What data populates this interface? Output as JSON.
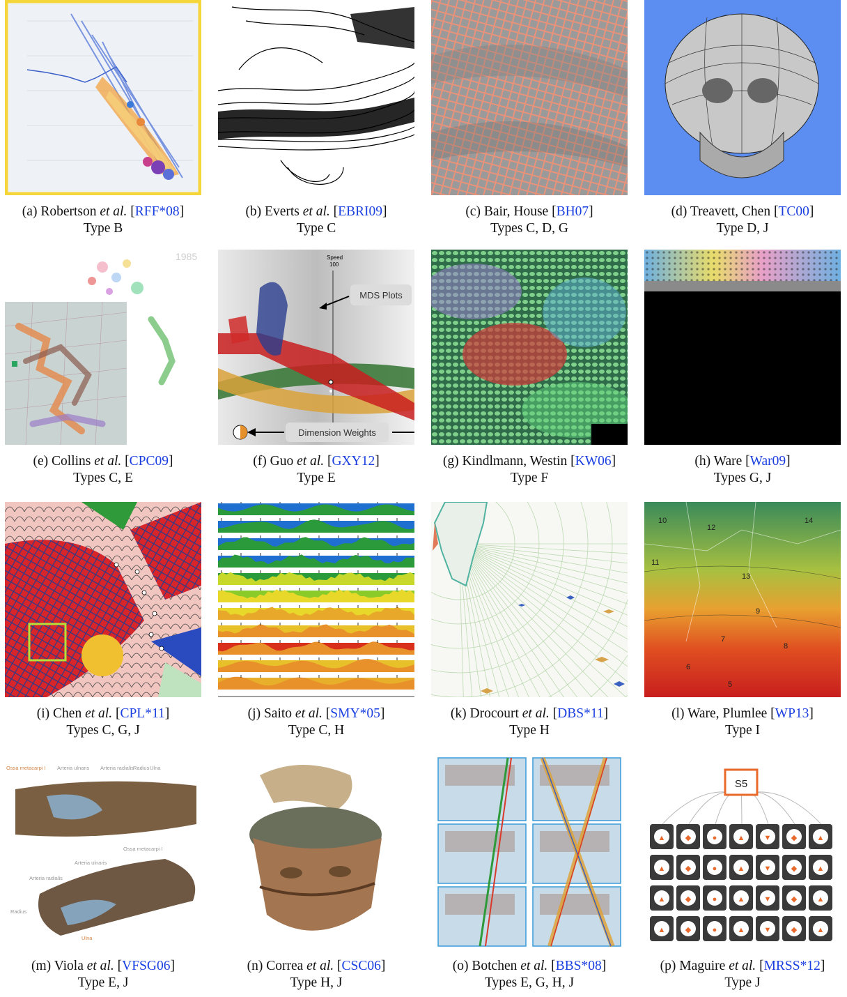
{
  "figures": [
    {
      "id": "a",
      "prefix": "(a) Robertson ",
      "etal": "et al.",
      "cite": "RFF*08",
      "type": "Type B"
    },
    {
      "id": "b",
      "prefix": "(b) Everts ",
      "etal": "et al.",
      "cite": "EBRI09",
      "type": "Type C"
    },
    {
      "id": "c",
      "prefix": "(c) Bair, House ",
      "etal": "",
      "cite": "BH07",
      "type": "Types C, D, G"
    },
    {
      "id": "d",
      "prefix": "(d) Treavett, Chen ",
      "etal": "",
      "cite": "TC00",
      "type": "Type D, J"
    },
    {
      "id": "e",
      "prefix": "(e) Collins ",
      "etal": "et al.",
      "cite": "CPC09",
      "type": "Types C, E"
    },
    {
      "id": "f",
      "prefix": "(f) Guo ",
      "etal": "et al.",
      "cite": "GXY12",
      "type": "Type E"
    },
    {
      "id": "g",
      "prefix": "(g) Kindlmann, Westin ",
      "etal": "",
      "cite": "KW06",
      "type": "Type F"
    },
    {
      "id": "h",
      "prefix": "(h) Ware ",
      "etal": "",
      "cite": "War09",
      "type": "Types G, J"
    },
    {
      "id": "i",
      "prefix": "(i) Chen ",
      "etal": "et al.",
      "cite": "CPL*11",
      "type": "Types C, G, J"
    },
    {
      "id": "j",
      "prefix": "(j) Saito ",
      "etal": "et al.",
      "cite": "SMY*05",
      "type": "Type C, H"
    },
    {
      "id": "k",
      "prefix": "(k) Drocourt ",
      "etal": "et al.",
      "cite": "DBS*11",
      "type": "Type H"
    },
    {
      "id": "l",
      "prefix": "(l) Ware, Plumlee ",
      "etal": "",
      "cite": "WP13",
      "type": "Type I"
    },
    {
      "id": "m",
      "prefix": "(m) Viola ",
      "etal": "et al.",
      "cite": "VFSG06",
      "type": "Type E, J"
    },
    {
      "id": "n",
      "prefix": "(n) Correa ",
      "etal": "et al.",
      "cite": "CSC06",
      "type": "Type H, J"
    },
    {
      "id": "o",
      "prefix": "(o) Botchen ",
      "etal": "et al.",
      "cite": "BBS*08",
      "type": "Types E, G, H, J"
    },
    {
      "id": "p",
      "prefix": "(p) Maguire ",
      "etal": "et al.",
      "cite": "MRSS*12",
      "type": "Type J"
    }
  ],
  "panel_text": {
    "e_year": "1985",
    "f_speed": "Speed",
    "f_speed_val": "100",
    "f_mds": "MDS Plots",
    "f_weights": "Dimension Weights",
    "m_l1": "Ossa metacarpi I",
    "m_l2": "Arteria ulnaris",
    "m_l3": "Arteria radialis",
    "m_l4": "Radius",
    "m_l5": "Ulna",
    "m_l6": "Ossa metacarpi I",
    "m_l7": "Arteria ulnaris",
    "m_l8": "Arteria radialis",
    "m_l9": "Radius",
    "m_l10": "Ulna",
    "p_node": "S5",
    "l_n1": "10",
    "l_n2": "12",
    "l_n3": "14",
    "l_n4": "11",
    "l_n5": "9",
    "l_n6": "8",
    "l_n7": "7",
    "l_n8": "13",
    "l_n9": "6",
    "l_n10": "5"
  },
  "colors": {
    "citation": "#1a3fe0",
    "frame_a": "#f5d63a",
    "background_d": "#5b8ef0",
    "node_p": "#e8692a"
  }
}
